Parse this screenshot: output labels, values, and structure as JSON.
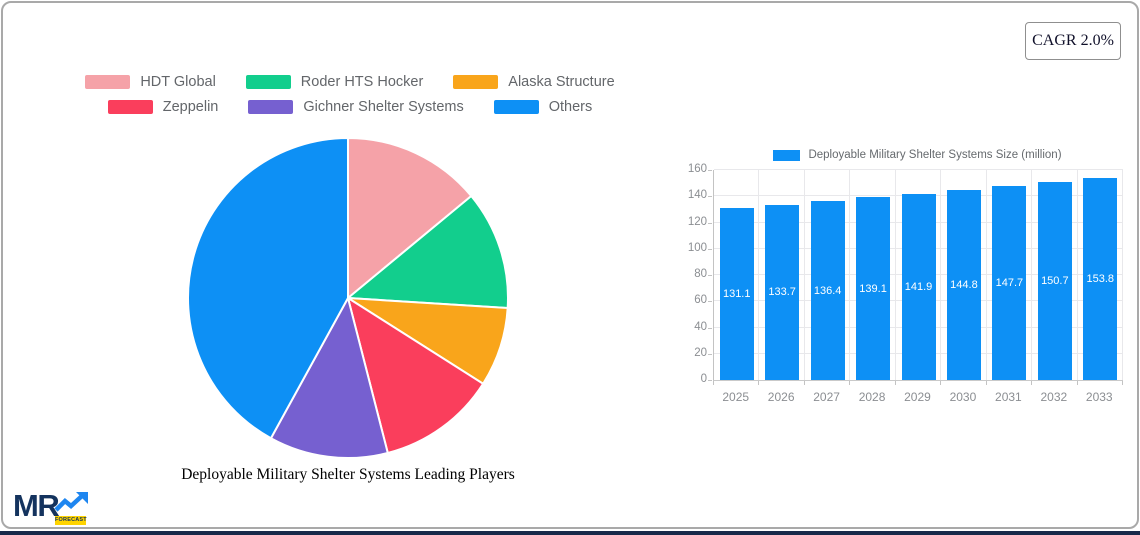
{
  "cagr_badge": {
    "label": "CAGR 2.0%"
  },
  "logo": {
    "text": "MR",
    "badge": "FORECAST"
  },
  "colors": {
    "accent_blue": "#0d90f5",
    "card_border": "#a9a9a9",
    "bottom_bar": "#17294a",
    "logo_navy": "#14335e",
    "logo_yellow": "#ffd400",
    "arrow_blue": "#1e86f0"
  },
  "chart_data": [
    {
      "type": "pie",
      "title": "Deployable Military Shelter Systems Leading Players",
      "legend_position": "top",
      "legend_rows": [
        [
          0,
          1,
          2
        ],
        [
          3,
          4,
          5
        ]
      ],
      "start_angle_deg": 0,
      "direction": "clockwise",
      "series": [
        {
          "name": "HDT Global",
          "value": 14,
          "color": "#f5a2a8"
        },
        {
          "name": "Roder HTS Hocker",
          "value": 12,
          "color": "#12ce8d"
        },
        {
          "name": "Alaska Structure",
          "value": 8,
          "color": "#f9a51b"
        },
        {
          "name": "Zeppelin",
          "value": 12,
          "color": "#fa3e5c"
        },
        {
          "name": "Gichner Shelter Systems",
          "value": 12,
          "color": "#7660d0"
        },
        {
          "name": "Others",
          "value": 42,
          "color": "#0d90f5"
        }
      ]
    },
    {
      "type": "bar",
      "legend_label": "Deployable Military Shelter Systems Size (million)",
      "legend_position": "top",
      "categories": [
        "2025",
        "2026",
        "2027",
        "2028",
        "2029",
        "2030",
        "2031",
        "2032",
        "2033"
      ],
      "values": [
        131.1,
        133.7,
        136.4,
        139.1,
        141.9,
        144.8,
        147.7,
        150.7,
        153.8
      ],
      "bar_color": "#0d90f5",
      "value_label_color": "#ffffff",
      "ylim": [
        0,
        160
      ],
      "ytick_step": 20,
      "grid": true
    }
  ]
}
